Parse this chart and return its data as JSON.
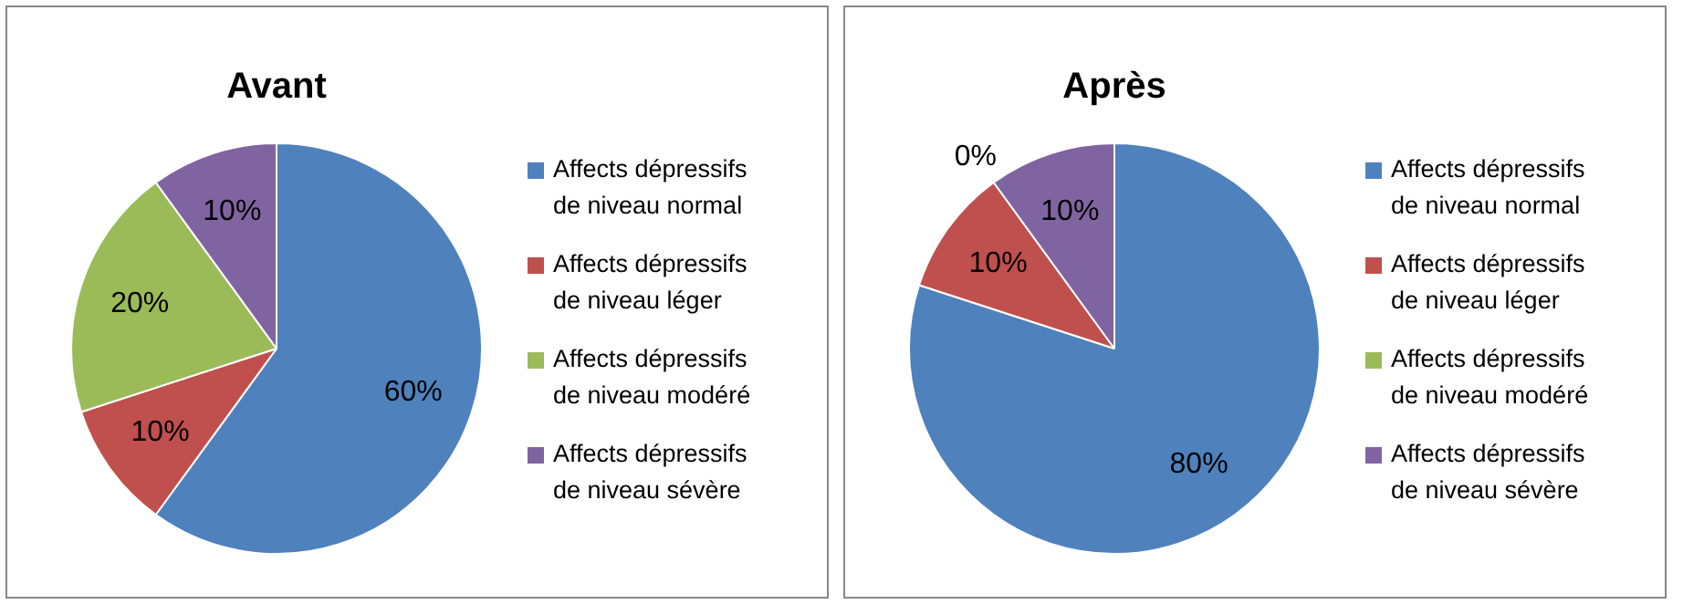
{
  "chart_data": [
    {
      "type": "pie",
      "title": "Avant",
      "categories": [
        "Affects dépressifs de niveau normal",
        "Affects dépressifs de niveau léger",
        "Affects dépressifs de niveau modéré",
        "Affects dépressifs de niveau sévère"
      ],
      "values": [
        60,
        10,
        20,
        10
      ],
      "value_labels": [
        "60%",
        "10%",
        "20%",
        "10%"
      ],
      "colors": [
        "#4f81bd",
        "#c0504d",
        "#9bbb59",
        "#8064a2"
      ],
      "legend": "right"
    },
    {
      "type": "pie",
      "title": "Après",
      "categories": [
        "Affects dépressifs de niveau normal",
        "Affects dépressifs de niveau léger",
        "Affects dépressifs de niveau modéré",
        "Affects dépressifs de niveau sévère"
      ],
      "values": [
        80,
        10,
        0,
        10
      ],
      "value_labels": [
        "80%",
        "10%",
        "0%",
        "10%"
      ],
      "colors": [
        "#4f81bd",
        "#c0504d",
        "#9bbb59",
        "#8064a2"
      ],
      "legend": "right"
    }
  ]
}
